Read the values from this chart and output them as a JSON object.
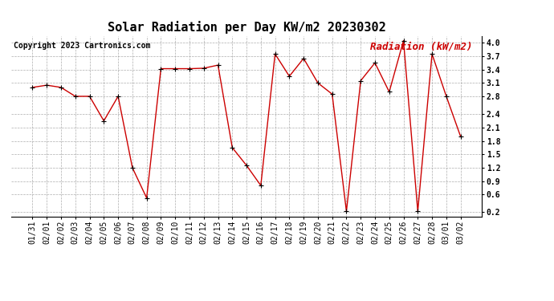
{
  "title": "Solar Radiation per Day KW/m2 20230302",
  "copyright_text": "Copyright 2023 Cartronics.com",
  "legend_label": "Radiation (kW/m2)",
  "dates": [
    "01/31",
    "02/01",
    "02/02",
    "02/03",
    "02/04",
    "02/05",
    "02/06",
    "02/07",
    "02/08",
    "02/09",
    "02/10",
    "02/11",
    "02/12",
    "02/13",
    "02/14",
    "02/15",
    "02/16",
    "02/17",
    "02/18",
    "02/19",
    "02/20",
    "02/21",
    "02/22",
    "02/23",
    "02/24",
    "02/25",
    "02/26",
    "02/27",
    "02/28",
    "03/01",
    "03/02"
  ],
  "values": [
    3.0,
    3.05,
    3.0,
    2.8,
    2.8,
    2.25,
    2.8,
    1.2,
    0.52,
    3.42,
    3.42,
    3.42,
    3.43,
    3.5,
    1.65,
    1.25,
    0.8,
    3.75,
    3.25,
    3.65,
    3.1,
    2.85,
    0.22,
    3.15,
    3.55,
    2.9,
    4.05,
    0.22,
    3.75,
    2.8,
    1.9
  ],
  "line_color": "#cc0000",
  "marker_color": "#000000",
  "background_color": "#ffffff",
  "grid_color": "#999999",
  "title_color": "#000000",
  "copyright_color": "#000000",
  "legend_color": "#cc0000",
  "ylim": [
    0.1,
    4.15
  ],
  "yticks": [
    0.2,
    0.6,
    0.9,
    1.2,
    1.5,
    1.8,
    2.1,
    2.4,
    2.8,
    3.1,
    3.4,
    3.7,
    4.0
  ],
  "title_fontsize": 11,
  "copyright_fontsize": 7,
  "legend_fontsize": 9,
  "axis_fontsize": 7
}
